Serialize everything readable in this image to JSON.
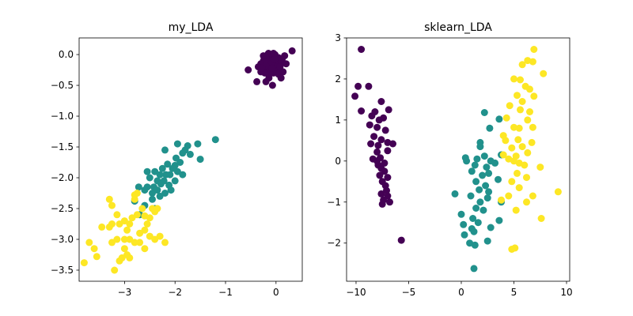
{
  "colors": {
    "class0": "#440154",
    "class1": "#21918c",
    "class2": "#fde725"
  },
  "chart_data": [
    {
      "type": "scatter",
      "title": "my_LDA",
      "xlabel": "",
      "ylabel": "",
      "xlim": [
        -3.9,
        0.52
      ],
      "ylim": [
        -3.68,
        0.27
      ],
      "xticks": [
        -3,
        -2,
        -1,
        0
      ],
      "yticks": [
        0.0,
        -0.5,
        -1.0,
        -1.5,
        -2.0,
        -2.5,
        -3.0,
        -3.5
      ],
      "xtick_labels": [
        "−3",
        "−2",
        "−1",
        "0"
      ],
      "ytick_labels": [
        "0.0",
        "−0.5",
        "−1.0",
        "−1.5",
        "−2.0",
        "−2.5",
        "−3.0",
        "−3.5"
      ],
      "grid": false,
      "legend": "none",
      "series": [
        {
          "color": "#440154",
          "points": [
            [
              0.32,
              0.06
            ],
            [
              0.17,
              -0.02
            ],
            [
              0.05,
              -0.05
            ],
            [
              -0.02,
              0.0
            ],
            [
              -0.1,
              -0.02
            ],
            [
              -0.15,
              0.02
            ],
            [
              -0.05,
              0.02
            ],
            [
              0.03,
              -0.1
            ],
            [
              0.1,
              -0.12
            ],
            [
              -0.08,
              -0.1
            ],
            [
              -0.15,
              -0.1
            ],
            [
              -0.2,
              -0.05
            ],
            [
              -0.25,
              -0.1
            ],
            [
              -0.3,
              -0.15
            ],
            [
              -0.35,
              -0.2
            ],
            [
              0.0,
              -0.18
            ],
            [
              0.12,
              -0.08
            ],
            [
              0.05,
              -0.25
            ],
            [
              -0.05,
              -0.3
            ],
            [
              -0.12,
              -0.3
            ],
            [
              -0.18,
              -0.25
            ],
            [
              -0.22,
              -0.3
            ],
            [
              -0.3,
              -0.28
            ],
            [
              0.05,
              -0.32
            ],
            [
              0.1,
              -0.38
            ],
            [
              -0.55,
              -0.25
            ],
            [
              -0.38,
              -0.44
            ],
            [
              -0.2,
              -0.44
            ],
            [
              -0.07,
              -0.5
            ],
            [
              0.0,
              -0.2
            ],
            [
              -0.1,
              -0.15
            ],
            [
              -0.2,
              -0.18
            ],
            [
              0.08,
              -0.2
            ],
            [
              -0.03,
              -0.08
            ],
            [
              0.2,
              -0.15
            ],
            [
              -0.28,
              -0.22
            ],
            [
              -0.14,
              -0.38
            ],
            [
              0.14,
              -0.28
            ],
            [
              -0.08,
              -0.22
            ],
            [
              -0.25,
              -0.02
            ]
          ]
        },
        {
          "color": "#21918c",
          "points": [
            [
              -1.2,
              -1.38
            ],
            [
              -1.55,
              -1.45
            ],
            [
              -1.5,
              -1.7
            ],
            [
              -1.75,
              -1.48
            ],
            [
              -1.8,
              -1.55
            ],
            [
              -1.95,
              -1.45
            ],
            [
              -1.85,
              -1.6
            ],
            [
              -1.9,
              -1.75
            ],
            [
              -1.95,
              -1.9
            ],
            [
              -2.0,
              -1.8
            ],
            [
              -2.05,
              -1.85
            ],
            [
              -2.1,
              -1.95
            ],
            [
              -2.2,
              -1.55
            ],
            [
              -2.15,
              -1.78
            ],
            [
              -2.18,
              -1.95
            ],
            [
              -2.22,
              -2.05
            ],
            [
              -2.25,
              -1.85
            ],
            [
              -2.3,
              -1.95
            ],
            [
              -2.35,
              -2.05
            ],
            [
              -2.4,
              -1.9
            ],
            [
              -2.42,
              -2.15
            ],
            [
              -2.45,
              -2.25
            ],
            [
              -2.5,
              -2.0
            ],
            [
              -2.55,
              -2.15
            ],
            [
              -2.6,
              -2.2
            ],
            [
              -2.72,
              -2.15
            ],
            [
              -2.55,
              -1.9
            ],
            [
              -2.3,
              -2.3
            ],
            [
              -2.2,
              -2.25
            ],
            [
              -2.35,
              -2.2
            ],
            [
              -2.45,
              -2.35
            ],
            [
              -2.0,
              -2.05
            ],
            [
              -2.12,
              -2.12
            ],
            [
              -1.85,
              -1.95
            ],
            [
              -2.4,
              -2.5
            ],
            [
              -2.6,
              -2.45
            ],
            [
              -2.8,
              -2.38
            ],
            [
              -2.7,
              -2.6
            ],
            [
              -1.7,
              -1.62
            ],
            [
              -2.28,
              -2.1
            ],
            [
              -1.98,
              -1.68
            ],
            [
              -2.08,
              -2.2
            ]
          ]
        },
        {
          "color": "#fde725",
          "points": [
            [
              -2.8,
              -2.28
            ],
            [
              -2.75,
              -2.25
            ],
            [
              -2.45,
              -2.5
            ],
            [
              -2.35,
              -2.5
            ],
            [
              -2.4,
              -2.55
            ],
            [
              -2.6,
              -2.62
            ],
            [
              -2.5,
              -2.65
            ],
            [
              -2.75,
              -2.6
            ],
            [
              -2.85,
              -2.65
            ],
            [
              -2.9,
              -2.75
            ],
            [
              -3.0,
              -2.7
            ],
            [
              -3.1,
              -2.75
            ],
            [
              -3.15,
              -2.6
            ],
            [
              -3.3,
              -2.35
            ],
            [
              -3.25,
              -2.45
            ],
            [
              -3.25,
              -2.75
            ],
            [
              -3.3,
              -2.8
            ],
            [
              -3.45,
              -2.8
            ],
            [
              -3.25,
              -3.05
            ],
            [
              -3.15,
              -3.0
            ],
            [
              -3.0,
              -3.0
            ],
            [
              -2.9,
              -3.0
            ],
            [
              -2.8,
              -3.05
            ],
            [
              -2.7,
              -3.05
            ],
            [
              -2.6,
              -2.85
            ],
            [
              -2.5,
              -2.95
            ],
            [
              -2.3,
              -2.95
            ],
            [
              -2.2,
              -3.05
            ],
            [
              -2.6,
              -3.15
            ],
            [
              -2.95,
              -3.25
            ],
            [
              -3.05,
              -3.3
            ],
            [
              -3.1,
              -3.35
            ],
            [
              -3.2,
              -3.5
            ],
            [
              -3.6,
              -3.15
            ],
            [
              -3.55,
              -3.28
            ],
            [
              -3.8,
              -3.38
            ],
            [
              -3.7,
              -3.05
            ],
            [
              -2.8,
              -2.35
            ],
            [
              -2.55,
              -2.75
            ],
            [
              -2.95,
              -2.85
            ],
            [
              -2.7,
              -2.9
            ],
            [
              -3.0,
              -3.15
            ],
            [
              -2.9,
              -3.3
            ],
            [
              -2.4,
              -3.0
            ],
            [
              -2.65,
              -2.5
            ]
          ]
        }
      ]
    },
    {
      "type": "scatter",
      "title": "sklearn_LDA",
      "xlabel": "",
      "ylabel": "",
      "xlim": [
        -10.9,
        10.3
      ],
      "ylim": [
        -2.93,
        3.0
      ],
      "xticks": [
        -10,
        -5,
        0,
        5,
        10
      ],
      "yticks": [
        3,
        2,
        1,
        0,
        -1,
        -2
      ],
      "xtick_labels": [
        "−10",
        "−5",
        "0",
        "5",
        "10"
      ],
      "ytick_labels": [
        "3",
        "2",
        "1",
        "0",
        "−1",
        "−2"
      ],
      "grid": false,
      "legend": "none",
      "series": [
        {
          "color": "#440154",
          "points": [
            [
              -9.5,
              2.72
            ],
            [
              -9.8,
              1.82
            ],
            [
              -8.8,
              1.82
            ],
            [
              -10.1,
              1.58
            ],
            [
              -7.6,
              1.45
            ],
            [
              -9.5,
              1.22
            ],
            [
              -6.9,
              1.25
            ],
            [
              -8.2,
              1.2
            ],
            [
              -7.4,
              1.05
            ],
            [
              -8.7,
              0.88
            ],
            [
              -8.0,
              0.82
            ],
            [
              -7.2,
              0.75
            ],
            [
              -8.3,
              0.6
            ],
            [
              -7.6,
              0.52
            ],
            [
              -8.6,
              0.42
            ],
            [
              -7.9,
              0.38
            ],
            [
              -6.5,
              0.42
            ],
            [
              -7.0,
              0.45
            ],
            [
              -8.0,
              0.22
            ],
            [
              -7.7,
              0.08
            ],
            [
              -7.3,
              -0.05
            ],
            [
              -7.9,
              -0.1
            ],
            [
              -7.6,
              -0.18
            ],
            [
              -7.3,
              -0.25
            ],
            [
              -7.0,
              -0.4
            ],
            [
              -7.5,
              -0.5
            ],
            [
              -7.2,
              -0.6
            ],
            [
              -7.6,
              -0.8
            ],
            [
              -7.0,
              -0.85
            ],
            [
              -7.4,
              -0.95
            ],
            [
              -6.8,
              -1.0
            ],
            [
              -7.5,
              -1.05
            ],
            [
              -5.7,
              -1.93
            ],
            [
              -7.1,
              -0.72
            ],
            [
              -8.0,
              0.0
            ],
            [
              -8.4,
              0.05
            ],
            [
              -7.8,
              1.0
            ],
            [
              -8.5,
              1.1
            ],
            [
              -7.0,
              0.25
            ],
            [
              -7.75,
              -0.35
            ]
          ]
        },
        {
          "color": "#21918c",
          "points": [
            [
              1.2,
              -2.62
            ],
            [
              2.2,
              1.18
            ],
            [
              3.6,
              1.02
            ],
            [
              2.7,
              0.8
            ],
            [
              1.8,
              0.45
            ],
            [
              1.8,
              0.35
            ],
            [
              3.8,
              0.15
            ],
            [
              2.2,
              0.12
            ],
            [
              0.4,
              0.08
            ],
            [
              1.5,
              0.05
            ],
            [
              2.8,
              0.0
            ],
            [
              3.2,
              -0.05
            ],
            [
              1.3,
              -0.1
            ],
            [
              2.4,
              -0.15
            ],
            [
              1.0,
              -0.25
            ],
            [
              2.0,
              -0.35
            ],
            [
              3.5,
              -0.45
            ],
            [
              1.4,
              -0.5
            ],
            [
              2.3,
              -0.6
            ],
            [
              1.7,
              -0.7
            ],
            [
              2.6,
              -0.75
            ],
            [
              -0.6,
              -0.8
            ],
            [
              0.9,
              -0.85
            ],
            [
              2.5,
              -0.9
            ],
            [
              1.8,
              -1.0
            ],
            [
              3.8,
              -1.0
            ],
            [
              1.4,
              -1.15
            ],
            [
              2.1,
              -1.2
            ],
            [
              0.0,
              -1.3
            ],
            [
              1.1,
              -1.4
            ],
            [
              1.6,
              -1.5
            ],
            [
              3.6,
              -1.45
            ],
            [
              0.2,
              -1.55
            ],
            [
              1.0,
              -1.65
            ],
            [
              2.8,
              -1.62
            ],
            [
              1.2,
              -1.72
            ],
            [
              0.3,
              -1.8
            ],
            [
              2.5,
              -1.95
            ],
            [
              0.8,
              -2.0
            ],
            [
              1.3,
              -2.05
            ],
            [
              0.5,
              0.0
            ],
            [
              2.6,
              -0.3
            ]
          ]
        },
        {
          "color": "#fde725",
          "points": [
            [
              6.9,
              2.72
            ],
            [
              6.3,
              2.45
            ],
            [
              6.8,
              2.42
            ],
            [
              5.8,
              2.35
            ],
            [
              7.8,
              2.13
            ],
            [
              5.0,
              2.0
            ],
            [
              5.6,
              1.98
            ],
            [
              6.1,
              1.82
            ],
            [
              6.5,
              1.75
            ],
            [
              5.3,
              1.6
            ],
            [
              6.9,
              1.58
            ],
            [
              5.8,
              1.45
            ],
            [
              4.6,
              1.35
            ],
            [
              5.6,
              1.25
            ],
            [
              6.5,
              1.2
            ],
            [
              4.3,
              1.05
            ],
            [
              6.3,
              1.0
            ],
            [
              5.0,
              0.82
            ],
            [
              5.5,
              0.8
            ],
            [
              6.8,
              0.82
            ],
            [
              4.0,
              0.62
            ],
            [
              4.2,
              0.5
            ],
            [
              5.4,
              0.52
            ],
            [
              6.7,
              0.45
            ],
            [
              5.8,
              0.35
            ],
            [
              4.8,
              0.32
            ],
            [
              6.3,
              0.2
            ],
            [
              4.0,
              0.15
            ],
            [
              5.2,
              0.12
            ],
            [
              4.5,
              0.05
            ],
            [
              5.0,
              0.0
            ],
            [
              5.5,
              -0.05
            ],
            [
              6.0,
              -0.1
            ],
            [
              7.5,
              -0.15
            ],
            [
              5.3,
              -0.3
            ],
            [
              6.2,
              -0.4
            ],
            [
              4.8,
              -0.5
            ],
            [
              5.5,
              -0.65
            ],
            [
              9.2,
              -0.75
            ],
            [
              4.5,
              -0.85
            ],
            [
              6.8,
              -0.85
            ],
            [
              3.8,
              -0.95
            ],
            [
              5.2,
              -1.2
            ],
            [
              7.6,
              -1.4
            ],
            [
              5.1,
              -2.12
            ],
            [
              4.8,
              -2.15
            ],
            [
              6.2,
              -1.0
            ]
          ]
        }
      ]
    }
  ]
}
